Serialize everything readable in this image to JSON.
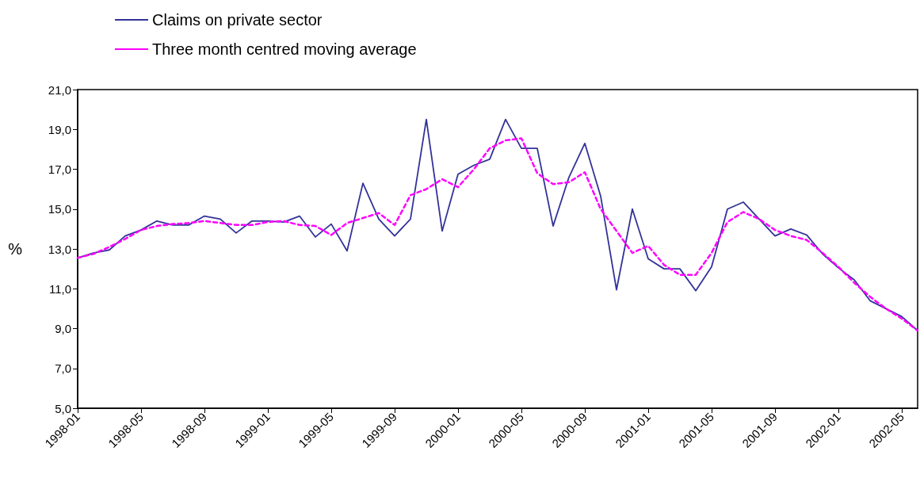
{
  "chart_data": {
    "type": "line",
    "ylabel": "%",
    "categories": [
      "1998-01",
      null,
      null,
      null,
      "1998-05",
      null,
      null,
      null,
      "1998-09",
      null,
      null,
      null,
      "1999-01",
      null,
      null,
      null,
      "1999-05",
      null,
      null,
      null,
      "1999-09",
      null,
      null,
      null,
      "2000-01",
      null,
      null,
      null,
      "2000-05",
      null,
      null,
      null,
      "2000-09",
      null,
      null,
      null,
      "2001-01",
      null,
      null,
      null,
      "2001-05",
      null,
      null,
      null,
      "2001-09",
      null,
      null,
      null,
      "2002-01",
      null,
      null,
      null,
      "2002-05",
      null
    ],
    "series": [
      {
        "name": "Claims on private sector",
        "color": "#333399",
        "line_style": "solid",
        "values": [
          12.55,
          12.8,
          12.95,
          13.65,
          13.95,
          14.4,
          14.2,
          14.2,
          14.65,
          14.5,
          13.8,
          14.4,
          14.4,
          14.35,
          14.65,
          13.6,
          14.25,
          12.9,
          16.3,
          14.5,
          13.65,
          14.5,
          19.5,
          13.9,
          16.75,
          17.2,
          17.5,
          19.5,
          18.05,
          18.05,
          14.15,
          16.6,
          18.3,
          15.65,
          10.95,
          15.0,
          12.5,
          12.0,
          12.0,
          10.9,
          12.1,
          15.0,
          15.35,
          14.5,
          13.65,
          14.0,
          13.7,
          12.75,
          12.05,
          11.45,
          10.4,
          10.0,
          9.6,
          8.9
        ]
      },
      {
        "name": "Three month centred moving average",
        "color": "#ff00ff",
        "line_style": "dashed",
        "values": [
          12.55,
          12.75,
          13.1,
          13.5,
          13.95,
          14.15,
          14.25,
          14.3,
          14.4,
          14.3,
          14.2,
          14.2,
          14.35,
          14.4,
          14.2,
          14.15,
          13.7,
          14.3,
          14.55,
          14.8,
          14.2,
          15.7,
          16.0,
          16.5,
          16.1,
          17.0,
          18.05,
          18.45,
          18.55,
          16.8,
          16.25,
          16.35,
          16.85,
          15.0,
          13.9,
          12.8,
          13.15,
          12.2,
          11.7,
          11.7,
          12.8,
          14.35,
          14.85,
          14.5,
          13.95,
          13.65,
          13.45,
          12.8,
          12.1,
          11.3,
          10.6,
          10.0,
          9.5,
          8.9
        ]
      }
    ],
    "ylim": [
      5,
      21
    ],
    "yticks": [
      {
        "value": 5,
        "label": "5,0"
      },
      {
        "value": 7,
        "label": "7,0"
      },
      {
        "value": 9,
        "label": "9,0"
      },
      {
        "value": 11,
        "label": "11,0"
      },
      {
        "value": 13,
        "label": "13,0"
      },
      {
        "value": 15,
        "label": "15,0"
      },
      {
        "value": 17,
        "label": "17,0"
      },
      {
        "value": 19,
        "label": "19,0"
      },
      {
        "value": 21,
        "label": "21,0"
      }
    ],
    "grid": false,
    "legend": "top left",
    "marker": "none"
  }
}
